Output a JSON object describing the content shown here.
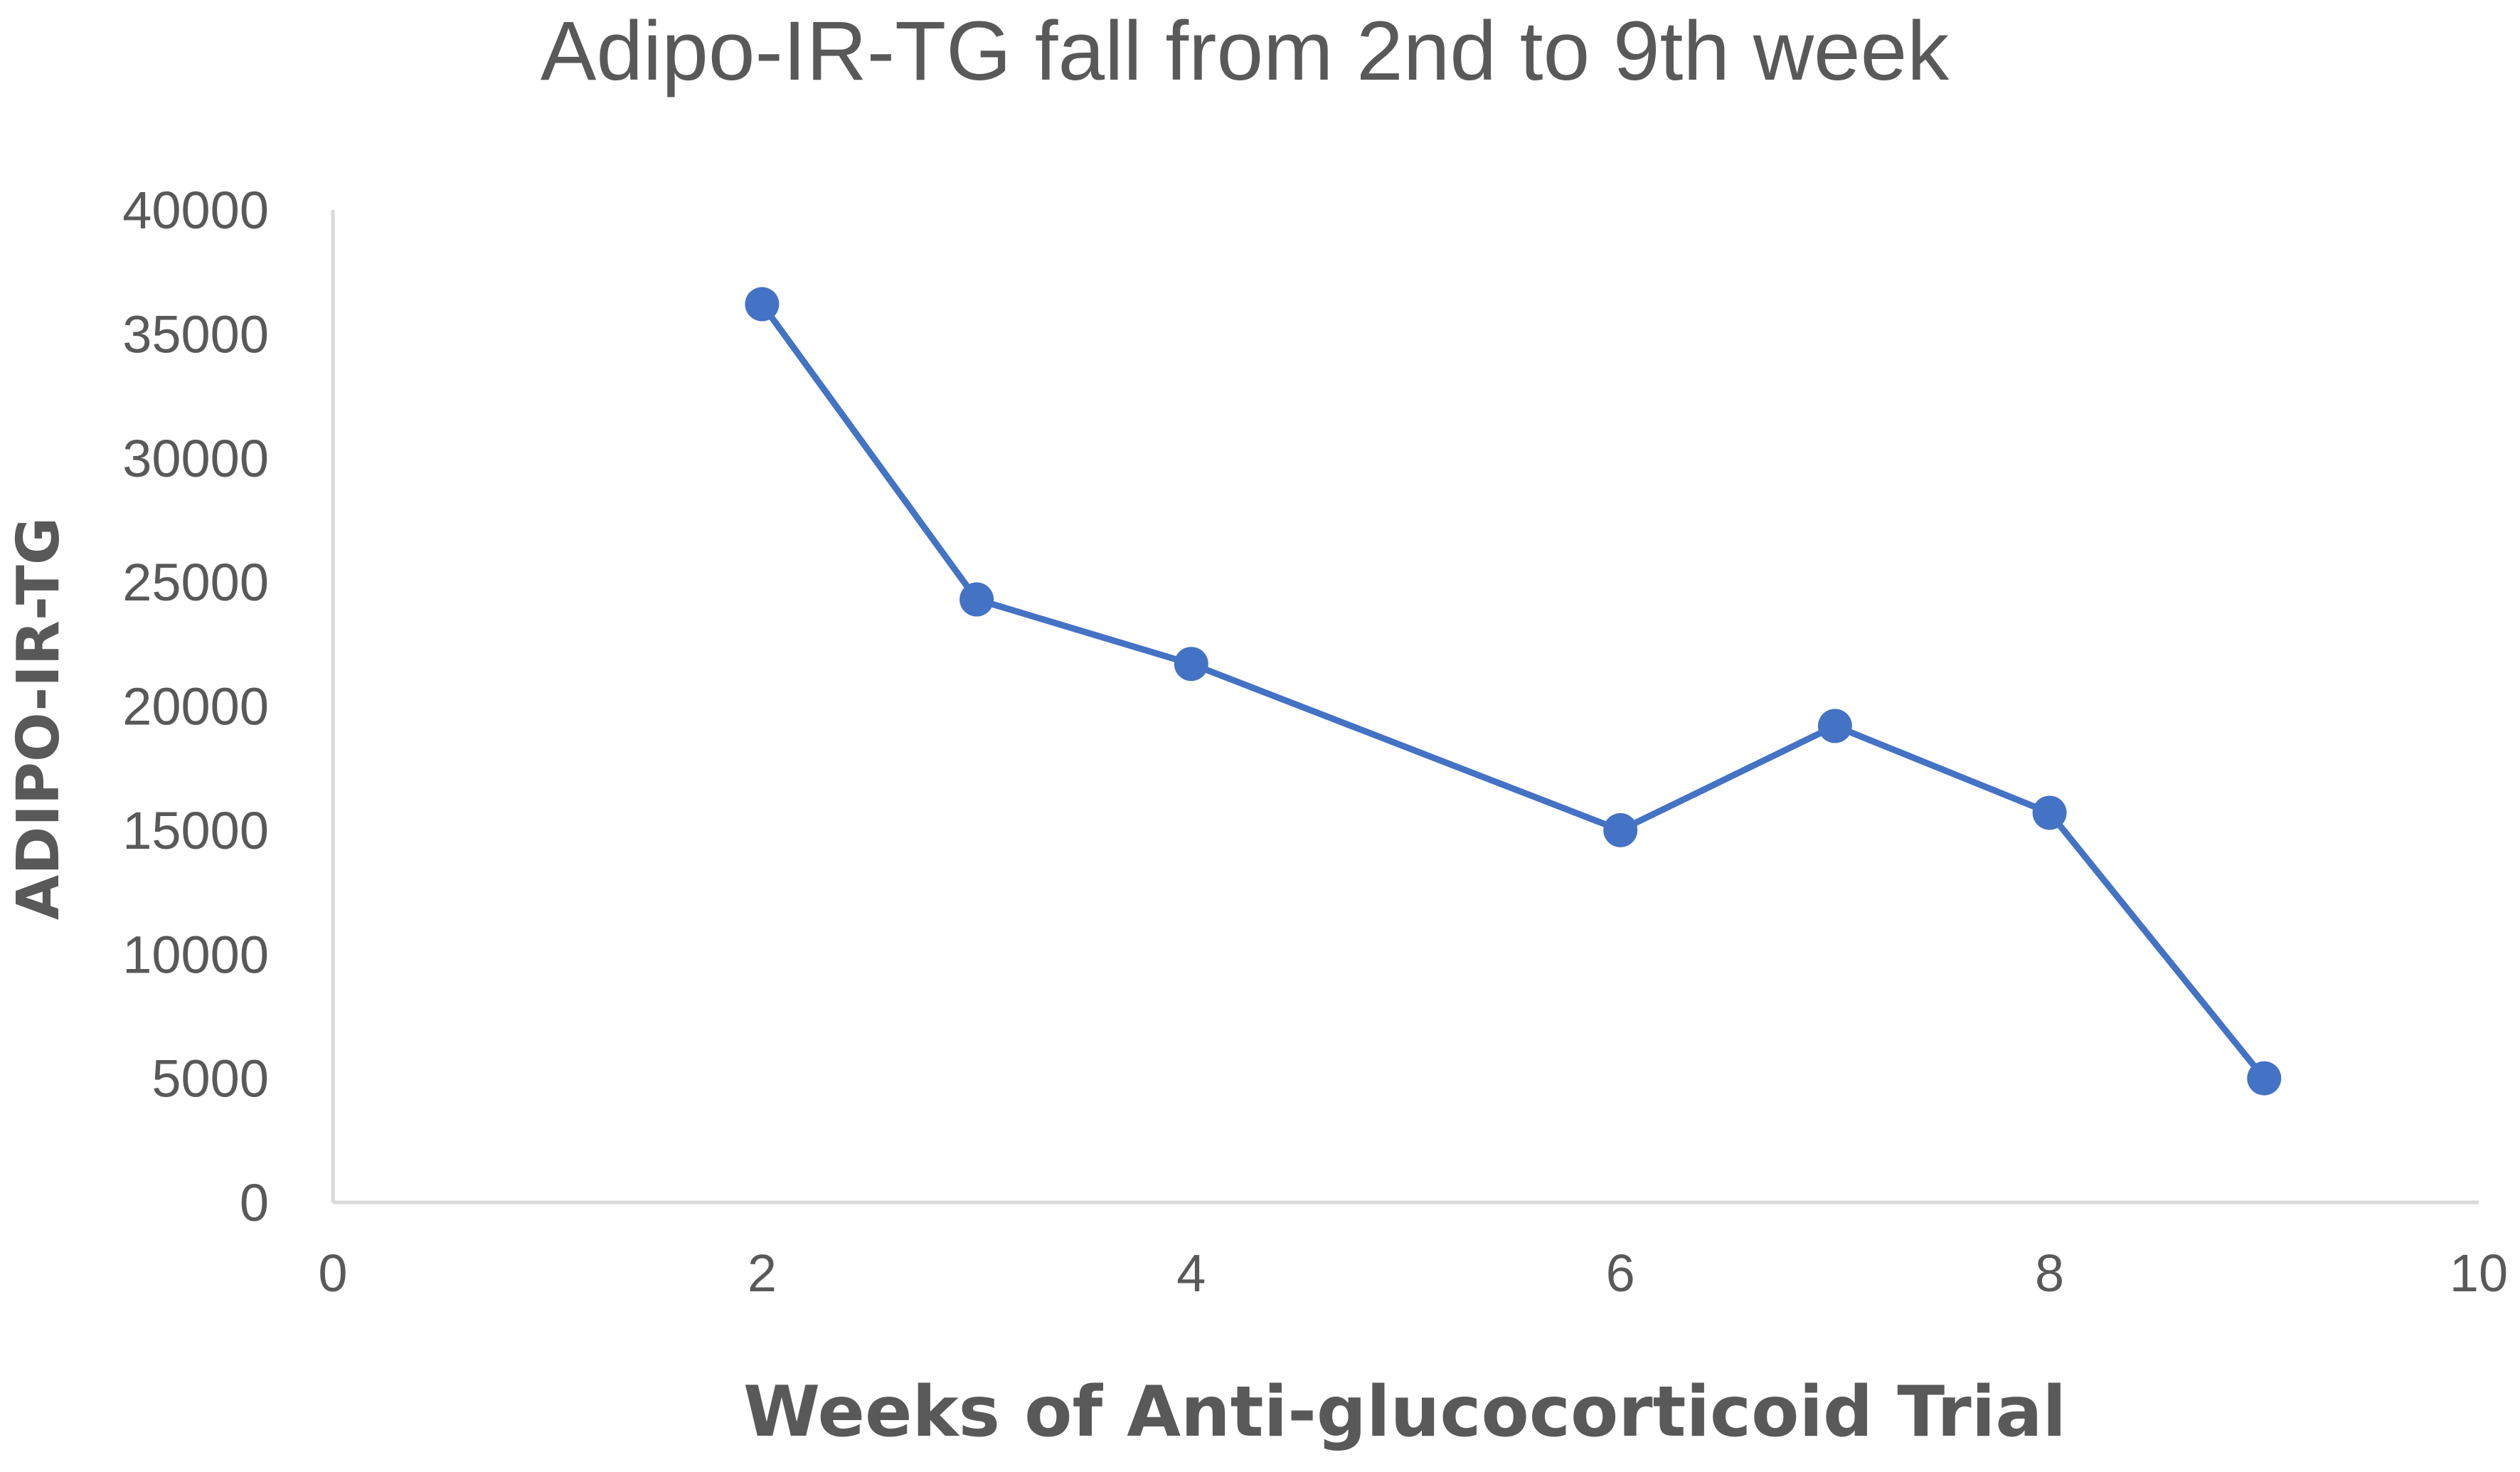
{
  "chart_data": {
    "type": "scatter",
    "title": "Adipo-IR-TG fall from 2nd to 9th week",
    "xlabel": "Weeks of Anti-glucocorticoid Trial",
    "ylabel": "ADIPO-IR-TG",
    "xlim": [
      0,
      10
    ],
    "ylim": [
      0,
      40000
    ],
    "xticks": [
      0,
      2,
      4,
      6,
      8,
      10
    ],
    "yticks": [
      0,
      5000,
      10000,
      15000,
      20000,
      25000,
      30000,
      35000,
      40000
    ],
    "grid": false,
    "legend": "none",
    "series": [
      {
        "color": "#4472C4",
        "lines": true,
        "markers": true,
        "x": [
          2,
          3,
          4,
          6,
          7,
          8,
          9
        ],
        "y": [
          36200,
          24300,
          21700,
          15000,
          19200,
          15700,
          5000
        ]
      }
    ]
  }
}
